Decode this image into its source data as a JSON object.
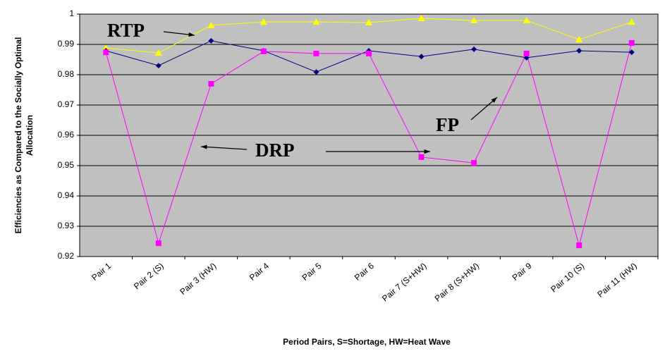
{
  "chart_data": {
    "type": "line",
    "ylabel": [
      "Efficiencies as Compared to the Socially Optimal",
      "Allocation"
    ],
    "xlabel": "Period Pairs, S=Shortage, HW=Heat Wave",
    "categories": [
      "Pair 1",
      "Pair 2 (S)",
      "Pair 3 (HW)",
      "Pair 4",
      "Pair 5",
      "Pair 6",
      "Pair 7 (S+HW)",
      "Pair 8 (S+HW)",
      "Pair 9",
      "Pair 10 (S)",
      "Pair 11 (HW)"
    ],
    "series": [
      {
        "name": "RTP",
        "color": "#ffff00",
        "marker": "triangle",
        "values": [
          0.9888,
          0.9872,
          0.9963,
          0.9974,
          0.9974,
          0.9972,
          0.9986,
          0.9979,
          0.9979,
          0.9916,
          0.9974
        ]
      },
      {
        "name": "FP",
        "color": "#000080",
        "marker": "diamond",
        "values": [
          0.9879,
          0.983,
          0.9912,
          0.9879,
          0.9809,
          0.9879,
          0.986,
          0.9884,
          0.9856,
          0.9879,
          0.9874
        ]
      },
      {
        "name": "DRP",
        "color": "#ff00ff",
        "marker": "square",
        "values": [
          0.9874,
          0.9244,
          0.977,
          0.9877,
          0.987,
          0.987,
          0.9528,
          0.9509,
          0.987,
          0.9237,
          0.9905
        ]
      }
    ],
    "ylim": [
      0.92,
      1
    ],
    "yticks": [
      0.92,
      0.93,
      0.94,
      0.95,
      0.96,
      0.97,
      0.98,
      0.99,
      1
    ],
    "grid": true,
    "background": "#c0c0c0"
  }
}
